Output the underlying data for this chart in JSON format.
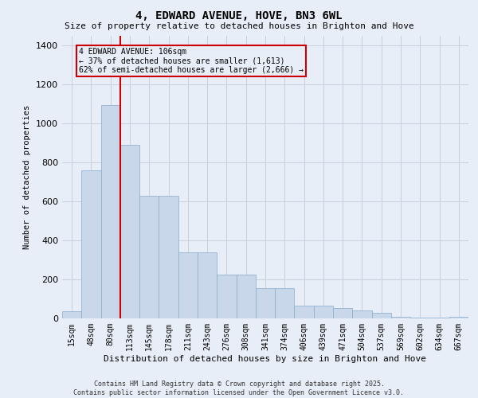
{
  "title": "4, EDWARD AVENUE, HOVE, BN3 6WL",
  "subtitle": "Size of property relative to detached houses in Brighton and Hove",
  "xlabel": "Distribution of detached houses by size in Brighton and Hove",
  "ylabel": "Number of detached properties",
  "footer_line1": "Contains HM Land Registry data © Crown copyright and database right 2025.",
  "footer_line2": "Contains public sector information licensed under the Open Government Licence v3.0.",
  "categories": [
    "15sqm",
    "48sqm",
    "80sqm",
    "113sqm",
    "145sqm",
    "178sqm",
    "211sqm",
    "243sqm",
    "276sqm",
    "308sqm",
    "341sqm",
    "374sqm",
    "406sqm",
    "439sqm",
    "471sqm",
    "504sqm",
    "537sqm",
    "569sqm",
    "602sqm",
    "634sqm",
    "667sqm"
  ],
  "values": [
    35,
    760,
    1095,
    890,
    630,
    630,
    340,
    340,
    225,
    225,
    155,
    155,
    65,
    65,
    55,
    40,
    30,
    10,
    5,
    5,
    10
  ],
  "bar_color": "#c8d8ea",
  "bar_edge_color": "#8aaac8",
  "grid_color": "#c8d0dc",
  "background_color": "#e8eef8",
  "annotation_box_text": "4 EDWARD AVENUE: 106sqm\n← 37% of detached houses are smaller (1,613)\n62% of semi-detached houses are larger (2,666) →",
  "annotation_box_color": "#cc0000",
  "vline_color": "#cc0000",
  "ylim": [
    0,
    1450
  ],
  "yticks": [
    0,
    200,
    400,
    600,
    800,
    1000,
    1200,
    1400
  ]
}
